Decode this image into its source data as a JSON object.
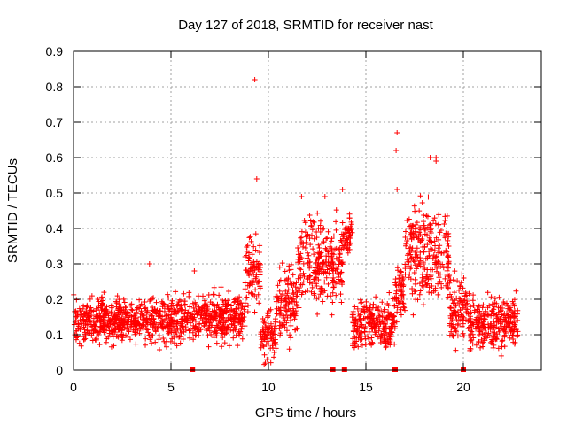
{
  "chart_data": {
    "type": "scatter",
    "title": "Day 127 of 2018, SRMTID for receiver nast",
    "xlabel": "GPS time / hours",
    "ylabel": "SRMTID / TECUs",
    "xlim": [
      0,
      24
    ],
    "ylim": [
      0,
      0.9
    ],
    "xticks": [
      0,
      5,
      10,
      15,
      20
    ],
    "yticks": [
      0,
      0.1,
      0.2,
      0.3,
      0.4,
      0.5,
      0.6,
      0.7,
      0.8,
      0.9
    ],
    "grid": true,
    "marker": "+",
    "series_color": "#ff0000",
    "zero_markers_x": [
      6.1,
      13.3,
      13.9,
      16.5,
      20.0
    ],
    "outliers": [
      {
        "x": 9.3,
        "y": 0.82
      },
      {
        "x": 9.4,
        "y": 0.54
      },
      {
        "x": 16.6,
        "y": 0.67
      },
      {
        "x": 16.55,
        "y": 0.62
      },
      {
        "x": 18.3,
        "y": 0.6
      },
      {
        "x": 18.6,
        "y": 0.6
      },
      {
        "x": 18.6,
        "y": 0.59
      },
      {
        "x": 13.8,
        "y": 0.51
      },
      {
        "x": 11.7,
        "y": 0.49
      },
      {
        "x": 12.9,
        "y": 0.49
      },
      {
        "x": 16.6,
        "y": 0.51
      },
      {
        "x": 3.9,
        "y": 0.3
      },
      {
        "x": 6.2,
        "y": 0.28
      }
    ],
    "envelope": [
      {
        "x0": 0.0,
        "x1": 4.0,
        "center": 0.14,
        "spread": 0.06
      },
      {
        "x0": 4.0,
        "x1": 5.5,
        "center": 0.14,
        "spread": 0.07
      },
      {
        "x0": 5.5,
        "x1": 8.8,
        "center": 0.15,
        "spread": 0.07
      },
      {
        "x0": 8.8,
        "x1": 9.6,
        "center": 0.28,
        "spread": 0.12
      },
      {
        "x0": 9.6,
        "x1": 10.4,
        "center": 0.1,
        "spread": 0.08
      },
      {
        "x0": 10.4,
        "x1": 11.5,
        "center": 0.2,
        "spread": 0.1
      },
      {
        "x0": 11.5,
        "x1": 13.8,
        "center": 0.3,
        "spread": 0.13
      },
      {
        "x0": 13.8,
        "x1": 14.3,
        "center": 0.38,
        "spread": 0.06
      },
      {
        "x0": 14.3,
        "x1": 16.5,
        "center": 0.13,
        "spread": 0.07
      },
      {
        "x0": 16.5,
        "x1": 17.0,
        "center": 0.22,
        "spread": 0.08
      },
      {
        "x0": 17.0,
        "x1": 19.3,
        "center": 0.33,
        "spread": 0.14
      },
      {
        "x0": 19.3,
        "x1": 20.3,
        "center": 0.17,
        "spread": 0.1
      },
      {
        "x0": 20.3,
        "x1": 22.8,
        "center": 0.13,
        "spread": 0.07
      }
    ]
  }
}
